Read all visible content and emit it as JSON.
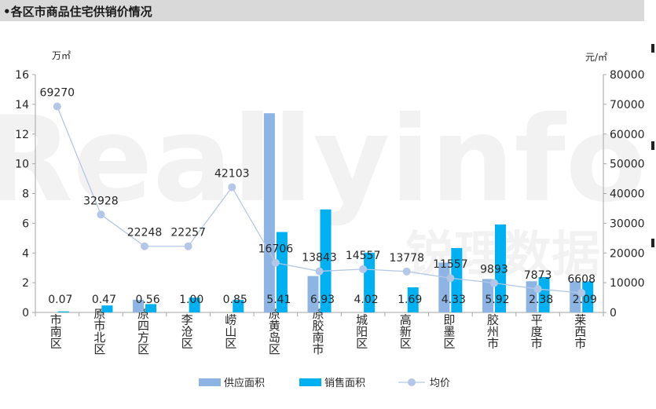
{
  "header": {
    "title": "•各区市商品住宅供销价情况"
  },
  "watermark": {
    "brand": "Reallyinfo",
    "cn": "锐理数据"
  },
  "chart_data": {
    "type": "bar",
    "categories": [
      "市南区",
      "原市北区",
      "原四方区",
      "李沧区",
      "崂山区",
      "原黄岛区",
      "原胶南市",
      "城阳区",
      "高新区",
      "即墨区",
      "胶州市",
      "平度市",
      "莱西市"
    ],
    "series": [
      {
        "name": "供应面积",
        "type": "bar",
        "axis": "left",
        "color": "#8eb4e3",
        "values": [
          0,
          0,
          0.85,
          0,
          0,
          13.4,
          2.45,
          0,
          0,
          3.35,
          2.25,
          2.1,
          2.1
        ]
      },
      {
        "name": "销售面积",
        "type": "bar",
        "axis": "left",
        "color": "#00b0f0",
        "values": [
          0.07,
          0.47,
          0.56,
          1.0,
          0.85,
          5.41,
          6.93,
          4.02,
          1.69,
          4.33,
          5.92,
          2.38,
          2.09
        ],
        "labels": [
          "0.07",
          "0.47",
          "0.56",
          "1.00",
          "0.85",
          "5.41",
          "6.93",
          "4.02",
          "1.69",
          "4.33",
          "5.92",
          "2.38",
          "2.09"
        ]
      },
      {
        "name": "均价",
        "type": "line",
        "axis": "right",
        "color": "#b4c7e7",
        "values": [
          69270,
          32928,
          22248,
          22257,
          42103,
          16706,
          13843,
          14557,
          13778,
          11557,
          9893,
          7873,
          6608
        ],
        "labels": [
          "69270",
          "32928",
          "22248",
          "22257",
          "42103",
          "16706",
          "13843",
          "14557",
          "13778",
          "11557",
          "9893",
          "7873",
          "6608"
        ]
      }
    ],
    "y_left": {
      "unit": "万㎡",
      "ylim": [
        0,
        16
      ],
      "ticks": [
        "0",
        "2",
        "4",
        "6",
        "8",
        "10",
        "12",
        "14",
        "16"
      ]
    },
    "y_right": {
      "unit": "元/㎡",
      "ylim": [
        0,
        80000
      ],
      "ticks": [
        "0",
        "10000",
        "20000",
        "30000",
        "40000",
        "50000",
        "60000",
        "70000",
        "80000"
      ]
    },
    "grid": false,
    "legend_position": "bottom"
  }
}
